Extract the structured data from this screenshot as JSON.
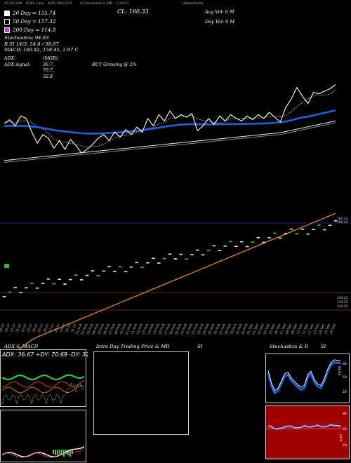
{
  "header": {
    "ticker_line": "(Manufactu",
    "mini_labels": [
      "20,50,200",
      "EMA Line",
      "ADX,MACD,R",
      "SI,Stochastics,MR",
      "(LFAU)"
    ],
    "close_label": "CL: 160.33",
    "avg_vol": "Avg Vol: 0   M",
    "day_vol": "Day Vol: 0   M",
    "ma20": "20   Day = 155.74",
    "ma50": "50   Day = 157.32",
    "ma200": "200   Day = 114.8",
    "stochastics": "Stochastics: 94.93",
    "rsi": "R          SI 14/3: 54.8  / 58.67",
    "macd": "MACD: 160.42,  158.45,  1.97 C",
    "adx_label": "ADX:",
    "adx_values": "(MGB) 36.7,  70.7,  32.8",
    "adx_signal_label": "ADX   signal:",
    "adx_signal": "BUY Growing @ 2%"
  },
  "colors": {
    "ma20": "#ffffff",
    "ma50": "#cccccc",
    "ma200": "#cc33cc",
    "ema": "#1f5fe0",
    "long_ma": "#f5901e",
    "sma_white": "#ffffff"
  },
  "price_labels": {
    "upper": "160.33",
    "upper2": "160.42",
    "lower1": "154.25",
    "lower2": "154.25",
    "lower3": "154.25"
  },
  "dates": [
    "18 Jul",
    "19 Jul",
    "20 Jul",
    "21 Jul",
    "22 Jul",
    "23 Jul",
    "24 Jul",
    "25 Jul",
    "26 Jul",
    "27 Jul",
    "28 Jul",
    "29 Jul",
    "30 Jul",
    "31 Jul",
    "01 Aug",
    "02 Aug",
    "03 Aug",
    "04 Aug",
    "05 Aug",
    "06 Aug",
    "07 Aug",
    "08 Aug",
    "09 Aug",
    "10 Aug",
    "11 Aug",
    "12 Aug",
    "13 Aug",
    "14 Aug",
    "15 Aug",
    "16 Aug",
    "17 Aug",
    "18 Aug",
    "19 Aug",
    "20 Aug",
    "21 Aug",
    "22 Aug",
    "23 Aug",
    "24 Aug",
    "25 Aug",
    "26 Aug",
    "27 Aug",
    "28 Aug",
    "29 Aug",
    "30 Aug",
    "31 Aug",
    "01 Sep",
    "02 Sep",
    "03 Sep",
    "04 Sep",
    "05 Sep",
    "06 Sep",
    "07 Sep",
    "08 Sep",
    "09 Sep",
    "10 Sep",
    "11 Sep",
    "12 Sep",
    "13 Sep",
    "14 Sep",
    "15 Sep",
    "16 Sep"
  ],
  "panels": {
    "adx_title": "ADX  & MACD",
    "adx_readout": "ADX: 36.67 +DY: 70.69 -DY: 32.76",
    "intraday_title": "Intra  Day Trading Price  & MR",
    "intraday_suffix": "SI",
    "stoch_title": "Stochastics & R",
    "stoch_suffix": "SI",
    "stoch_axis": [
      "80",
      "50",
      "20"
    ],
    "stoch_value": "94.93",
    "rsi_axis": [
      "80",
      "50",
      "20"
    ],
    "rsi_value": "54.8"
  },
  "chart_data": {
    "type": "line",
    "x": [
      "18 Jul",
      "19 Jul",
      "20 Jul",
      "21 Jul",
      "22 Jul",
      "23 Jul",
      "24 Jul",
      "25 Jul",
      "26 Jul",
      "27 Jul",
      "28 Jul",
      "29 Jul",
      "30 Jul",
      "31 Jul",
      "01 Aug",
      "02 Aug",
      "03 Aug",
      "04 Aug",
      "05 Aug",
      "06 Aug",
      "07 Aug",
      "08 Aug",
      "09 Aug",
      "10 Aug",
      "11 Aug",
      "12 Aug",
      "13 Aug",
      "14 Aug",
      "15 Aug",
      "16 Aug",
      "17 Aug",
      "18 Aug",
      "19 Aug",
      "20 Aug",
      "21 Aug",
      "22 Aug",
      "23 Aug",
      "24 Aug",
      "25 Aug",
      "26 Aug",
      "27 Aug",
      "28 Aug",
      "29 Aug",
      "30 Aug",
      "31 Aug",
      "01 Sep",
      "02 Sep",
      "03 Sep",
      "04 Sep",
      "05 Sep",
      "06 Sep",
      "07 Sep",
      "08 Sep",
      "09 Sep",
      "10 Sep",
      "11 Sep",
      "12 Sep",
      "13 Sep",
      "14 Sep",
      "15 Sep",
      "16 Sep"
    ],
    "series": [
      {
        "name": "Close",
        "values": [
          157.2,
          157.5,
          157.0,
          157.8,
          157.6,
          156.5,
          155.6,
          156.3,
          156.0,
          155.2,
          155.8,
          155.1,
          155.9,
          155.4,
          154.8,
          155.1,
          155.5,
          156.0,
          156.3,
          155.8,
          156.5,
          156.1,
          156.7,
          156.3,
          156.9,
          156.5,
          157.6,
          157.0,
          157.9,
          157.4,
          158.2,
          157.6,
          157.9,
          157.7,
          158.0,
          156.6,
          157.0,
          157.6,
          157.1,
          157.8,
          157.4,
          157.9,
          157.6,
          157.4,
          157.8,
          157.5,
          157.9,
          157.6,
          158.1,
          157.7,
          157.3,
          158.5,
          159.2,
          160.1,
          159.4,
          158.8,
          159.7,
          159.6,
          159.8,
          160.0,
          160.33
        ]
      },
      {
        "name": "EMA",
        "values": [
          157.0,
          157.0,
          157.0,
          157.0,
          157.0,
          156.95,
          156.9,
          156.82,
          156.75,
          156.65,
          156.6,
          156.55,
          156.5,
          156.45,
          156.4,
          156.38,
          156.38,
          156.38,
          156.4,
          156.43,
          156.45,
          156.48,
          156.52,
          156.55,
          156.6,
          156.65,
          156.72,
          156.78,
          156.85,
          156.92,
          157.0,
          157.05,
          157.1,
          157.12,
          157.15,
          157.12,
          157.12,
          157.12,
          157.12,
          157.13,
          157.14,
          157.15,
          157.15,
          157.15,
          157.16,
          157.17,
          157.18,
          157.2,
          157.22,
          157.25,
          157.28,
          157.35,
          157.45,
          157.58,
          157.68,
          157.75,
          157.85,
          157.95,
          158.05,
          158.15,
          158.25
        ]
      }
    ],
    "grid": false,
    "legend": "top-left"
  }
}
